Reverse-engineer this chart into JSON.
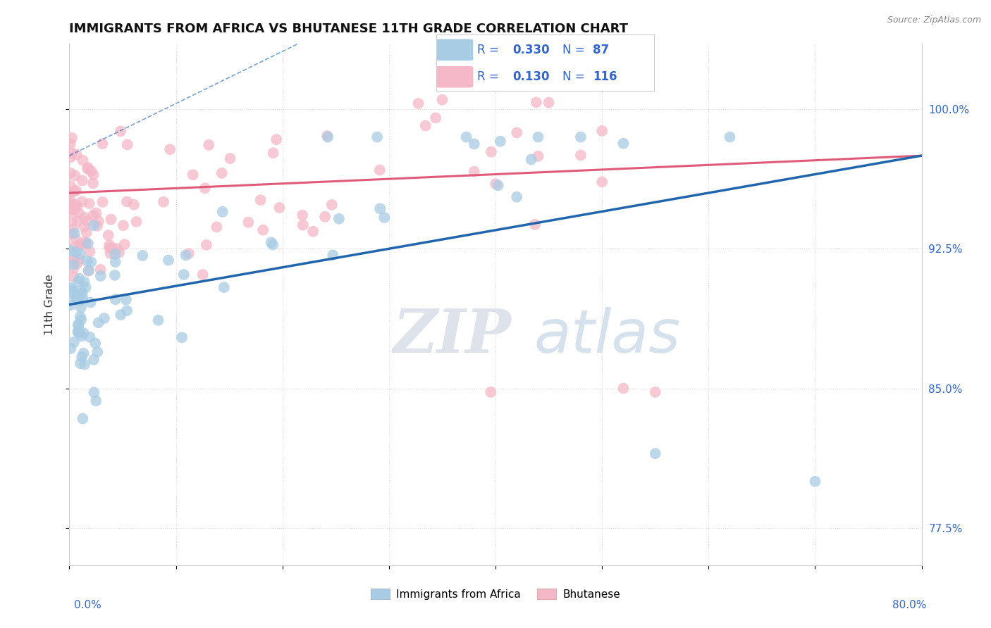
{
  "title": "IMMIGRANTS FROM AFRICA VS BHUTANESE 11TH GRADE CORRELATION CHART",
  "source": "Source: ZipAtlas.com",
  "ylabel": "11th Grade",
  "ylabel_ticks": [
    "100.0%",
    "92.5%",
    "85.0%",
    "77.5%"
  ],
  "ylabel_values": [
    1.0,
    0.925,
    0.85,
    0.775
  ],
  "xmin": 0.0,
  "xmax": 0.8,
  "ymin": 0.755,
  "ymax": 1.035,
  "legend_blue": "Immigrants from Africa",
  "legend_pink": "Bhutanese",
  "R_blue": 0.33,
  "N_blue": 87,
  "R_pink": 0.13,
  "N_pink": 116,
  "blue_color": "#a8cce4",
  "pink_color": "#f4b8c8",
  "blue_line_color": "#2166ac",
  "pink_line_color": "#e05a7a",
  "blue_dot_edge": "#7aadcc",
  "pink_dot_edge": "#e890a8",
  "watermark_zip": "ZIP",
  "watermark_atlas": "atlas",
  "figsize": [
    14.06,
    8.92
  ],
  "dpi": 100
}
